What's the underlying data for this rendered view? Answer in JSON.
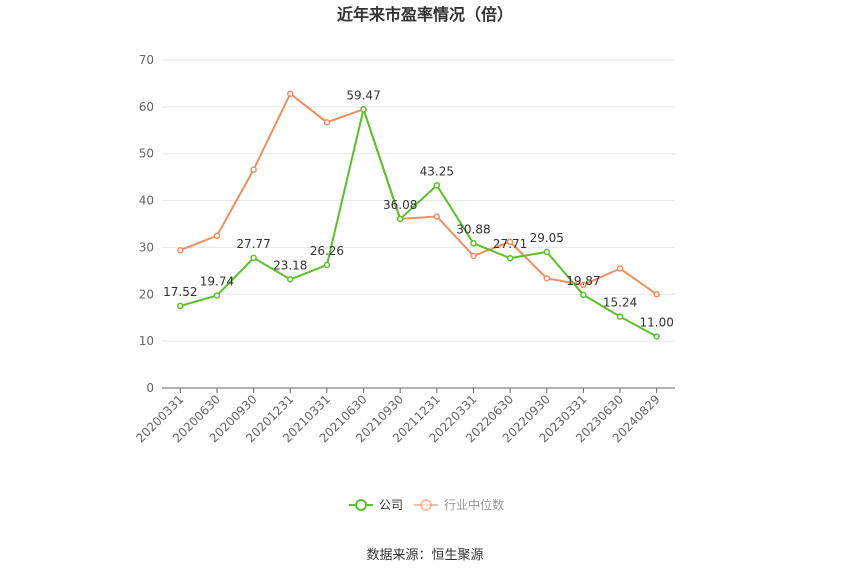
{
  "chart_data": {
    "type": "line",
    "title": "近年来市盈率情况（倍）",
    "categories": [
      "20200331",
      "20200630",
      "20200930",
      "20201231",
      "20210331",
      "20210630",
      "20210930",
      "20211231",
      "20220331",
      "20220630",
      "20220930",
      "20230331",
      "20230630",
      "20240829"
    ],
    "series": [
      {
        "name": "公司",
        "color": "#5bc12b",
        "values": [
          17.52,
          19.74,
          27.77,
          23.18,
          26.26,
          59.47,
          36.08,
          43.25,
          30.88,
          27.71,
          29.05,
          19.87,
          15.24,
          11.0
        ],
        "labels": [
          "17.52",
          "19.74",
          "27.77",
          "23.18",
          "26.26",
          "59.47",
          "36.08",
          "43.25",
          "30.88",
          "27.71",
          "29.05",
          "19.87",
          "15.24",
          "11.00"
        ]
      },
      {
        "name": "行业中位数",
        "color": "#ef8f5f",
        "values": [
          29.4,
          32.5,
          46.6,
          62.8,
          56.7,
          59.5,
          36.1,
          36.6,
          28.2,
          31.2,
          23.4,
          22.0,
          25.5,
          20.0
        ]
      }
    ],
    "ylim": [
      0,
      70
    ],
    "yticks": [
      0,
      10,
      20,
      30,
      40,
      50,
      60,
      70
    ],
    "grid": true,
    "legend_position": "bottom-center",
    "xlabel": "",
    "ylabel": ""
  },
  "source": "数据来源：恒生聚源"
}
